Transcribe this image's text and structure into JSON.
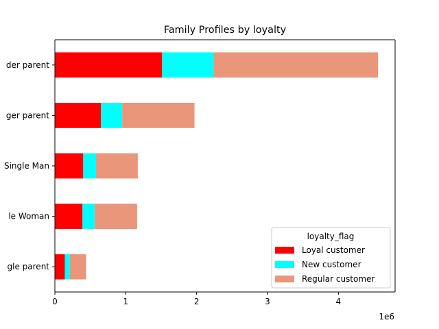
{
  "chart_data": {
    "type": "bar",
    "orientation": "horizontal",
    "stacked": true,
    "title": "Family Profiles by loyalty",
    "xlabel": "",
    "ylabel": "",
    "x_offset_label": "1e6",
    "xlim": [
      0,
      4.8
    ],
    "x_ticks": [
      0,
      1,
      2,
      3,
      4
    ],
    "x_tick_labels": [
      "0",
      "1",
      "2",
      "3",
      "4"
    ],
    "categories": [
      "Single parent",
      "Single Woman",
      "Single Man",
      "Younger parent",
      "Older parent"
    ],
    "category_labels_visible": [
      "gle parent",
      "le Woman",
      "Single Man",
      "ger parent",
      "der parent"
    ],
    "series": [
      {
        "name": "Loyal customer",
        "color": "#ff0000",
        "values": [
          0.14,
          0.39,
          0.4,
          0.65,
          1.51
        ]
      },
      {
        "name": "New customer",
        "color": "#00ffff",
        "values": [
          0.07,
          0.17,
          0.18,
          0.3,
          0.73
        ]
      },
      {
        "name": "Regular customer",
        "color": "#e9967a",
        "values": [
          0.23,
          0.6,
          0.59,
          1.02,
          2.32
        ]
      }
    ],
    "legend": {
      "title": "loyalty_flag",
      "placement": "lower-right"
    },
    "grid": false
  }
}
